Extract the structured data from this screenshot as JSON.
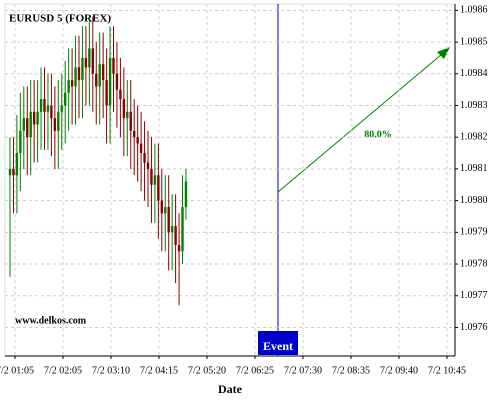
{
  "chart_data": {
    "type": "candlestick",
    "title": "EURUSD 5 (FOREX)",
    "x_label": "Date",
    "categories": [
      "7/2 01:05",
      "7/2 02:05",
      "7/2 03:10",
      "7/2 04:15",
      "7/2 05:20",
      "7/2 06:25",
      "7/2 07:30",
      "7/2 08:35",
      "7/2 09:40",
      "7/2 10:45"
    ],
    "open": [
      1.09808,
      1.0981,
      1.09808,
      1.09815,
      1.09822,
      1.09826,
      1.0982,
      1.09828,
      1.09824,
      1.09828,
      1.09832,
      1.09828,
      1.0983,
      1.09826,
      1.09822,
      1.09828,
      1.0983,
      1.09834,
      1.09838,
      1.09836,
      1.09842,
      1.09838,
      1.09845,
      1.09842,
      1.09848,
      1.0984,
      1.09836,
      1.09843,
      1.09838,
      1.0983,
      1.09845,
      1.0984,
      1.09835,
      1.09832,
      1.09826,
      1.09828,
      1.09822,
      1.0982,
      1.09818,
      1.09815,
      1.09812,
      1.0981,
      1.09805,
      1.09808,
      1.098,
      1.09796,
      1.09798,
      1.0979,
      1.09792,
      1.09786,
      1.09784,
      1.09798
    ],
    "high": [
      1.0982,
      1.0982,
      1.09827,
      1.09834,
      1.09836,
      1.09836,
      1.09838,
      1.09838,
      1.09838,
      1.09842,
      1.09842,
      1.0984,
      1.0984,
      1.09836,
      1.09838,
      1.0984,
      1.09844,
      1.09848,
      1.09848,
      1.09852,
      1.09852,
      1.09855,
      1.09855,
      1.09858,
      1.09858,
      1.0985,
      1.09853,
      1.09853,
      1.09848,
      1.09855,
      1.09855,
      1.0985,
      1.09845,
      1.09842,
      1.09838,
      1.09838,
      1.09832,
      1.0983,
      1.09828,
      1.09825,
      1.09822,
      1.0982,
      1.09818,
      1.09818,
      1.0981,
      1.09808,
      1.09808,
      1.09802,
      1.09802,
      1.09796,
      1.09808,
      1.0981
    ],
    "low": [
      1.09776,
      1.09796,
      1.09796,
      1.09803,
      1.0981,
      1.09808,
      1.09808,
      1.09812,
      1.09812,
      1.09816,
      1.09816,
      1.09816,
      1.09814,
      1.0981,
      1.0981,
      1.09816,
      1.09818,
      1.09822,
      1.09824,
      1.09824,
      1.09826,
      1.09826,
      1.0983,
      1.0983,
      1.09828,
      1.09824,
      1.09824,
      1.09826,
      1.09818,
      1.09818,
      1.09828,
      1.09823,
      1.0982,
      1.09814,
      1.09814,
      1.0981,
      1.09808,
      1.09806,
      1.09803,
      1.098,
      1.09798,
      1.09793,
      1.09793,
      1.09788,
      1.09784,
      1.09784,
      1.09778,
      1.09778,
      1.09774,
      1.09767,
      1.0978,
      1.09794
    ],
    "close": [
      1.0981,
      1.09808,
      1.09815,
      1.09822,
      1.09826,
      1.0982,
      1.09828,
      1.09824,
      1.09828,
      1.09832,
      1.09828,
      1.0983,
      1.09826,
      1.09822,
      1.09828,
      1.0983,
      1.09834,
      1.09838,
      1.09836,
      1.09842,
      1.09838,
      1.09845,
      1.09842,
      1.09848,
      1.0984,
      1.09836,
      1.09843,
      1.09838,
      1.0983,
      1.09845,
      1.0984,
      1.09835,
      1.09832,
      1.09826,
      1.09828,
      1.09822,
      1.0982,
      1.09818,
      1.09815,
      1.09812,
      1.0981,
      1.09805,
      1.09808,
      1.098,
      1.09796,
      1.09798,
      1.0979,
      1.09792,
      1.09786,
      1.09784,
      1.09798,
      1.09806
    ],
    "up_color": "#008000",
    "down_color": "#8b0000",
    "ylim": [
      1.09751,
      1.09862
    ],
    "yticks": [
      1.0976,
      1.0977,
      1.0978,
      1.0979,
      {
        "value": 1.098,
        "label": "1.0980"
      },
      1.0981,
      1.0982,
      1.0983,
      1.0984,
      1.0985,
      1.0986
    ],
    "grid": true,
    "event_label": "Event",
    "prediction_label": "80.0%",
    "watermark": "www.delkos.com"
  }
}
